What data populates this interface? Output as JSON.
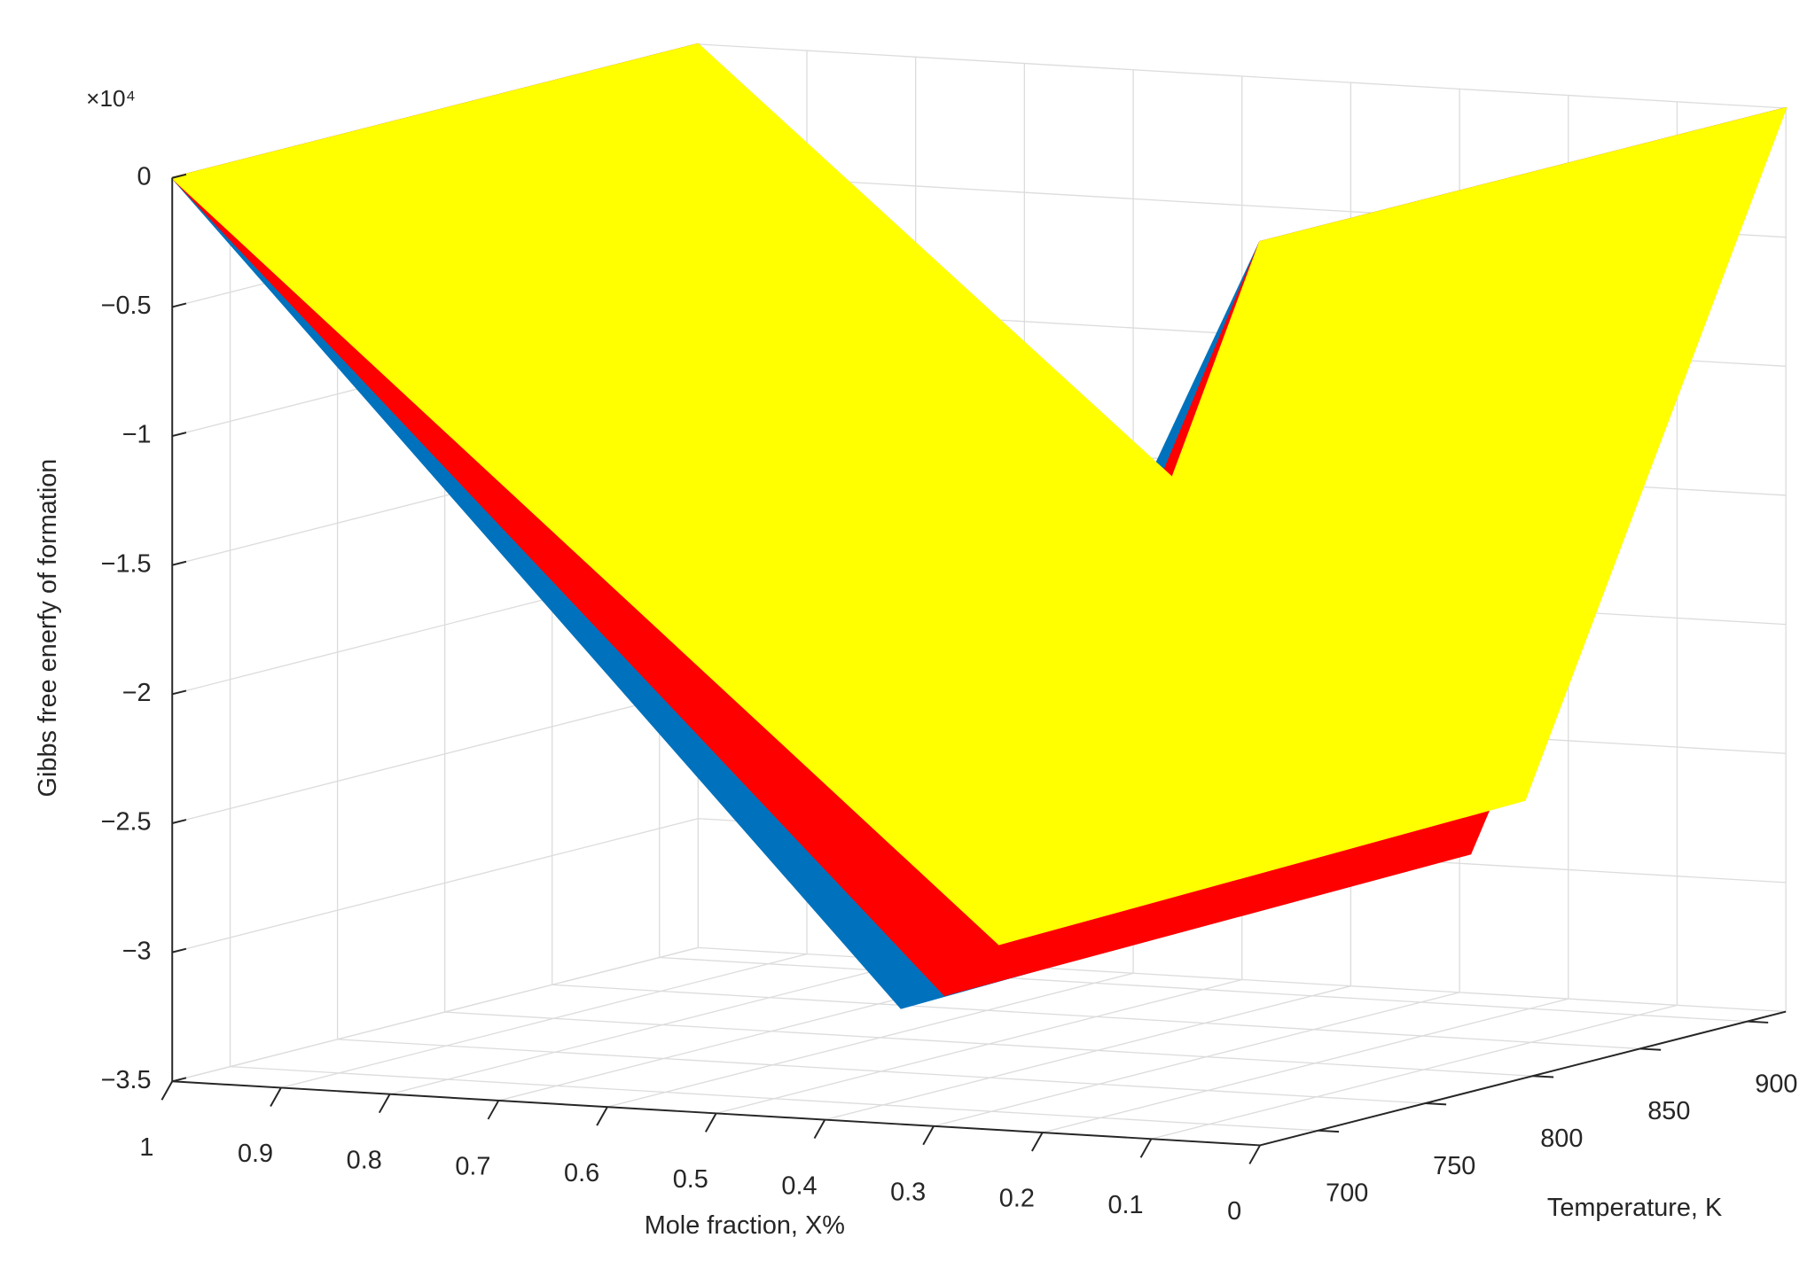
{
  "chart_data": {
    "type": "surface3d",
    "zlabel": "Gibbs free enerfy of formation",
    "xlabel": "Mole fraction, X%",
    "ylabel": "Temperature, K",
    "z_multiplier": "×10⁴",
    "xlim": [
      0,
      1
    ],
    "xticks": [
      0,
      0.1,
      0.2,
      0.3,
      0.4,
      0.5,
      0.6,
      0.7,
      0.8,
      0.9,
      1
    ],
    "ylim": [
      673,
      918
    ],
    "yticks": [
      700,
      750,
      800,
      850,
      900
    ],
    "zlim": [
      -3.5,
      0
    ],
    "zticks": [
      {
        "value": -3.5,
        "label": "−3.5"
      },
      {
        "value": -3,
        "label": "−3"
      },
      {
        "value": -2.5,
        "label": "−2.5"
      },
      {
        "value": -2,
        "label": "−2"
      },
      {
        "value": -1.5,
        "label": "−1.5"
      },
      {
        "value": -1,
        "label": "−1"
      },
      {
        "value": -0.5,
        "label": "−0.5"
      },
      0
    ],
    "grid": true,
    "series": [
      {
        "color": "#0072bd",
        "x": [
          1,
          0.33,
          0
        ],
        "y": [
          673,
          918
        ],
        "values": [
          [
            0,
            -3.05,
            0
          ],
          [
            0,
            -3.0,
            0
          ]
        ]
      },
      {
        "color": "#ff0000",
        "x": [
          1,
          0.29,
          0
        ],
        "y": [
          673,
          918
        ],
        "values": [
          [
            0,
            -2.99,
            0
          ],
          [
            0,
            -2.96,
            0
          ]
        ]
      },
      {
        "color": "#ffff00",
        "x": [
          1,
          0.24,
          0
        ],
        "y": [
          673,
          918
        ],
        "values": [
          [
            0,
            -2.78,
            0
          ],
          [
            0,
            -2.74,
            0
          ]
        ]
      }
    ]
  }
}
